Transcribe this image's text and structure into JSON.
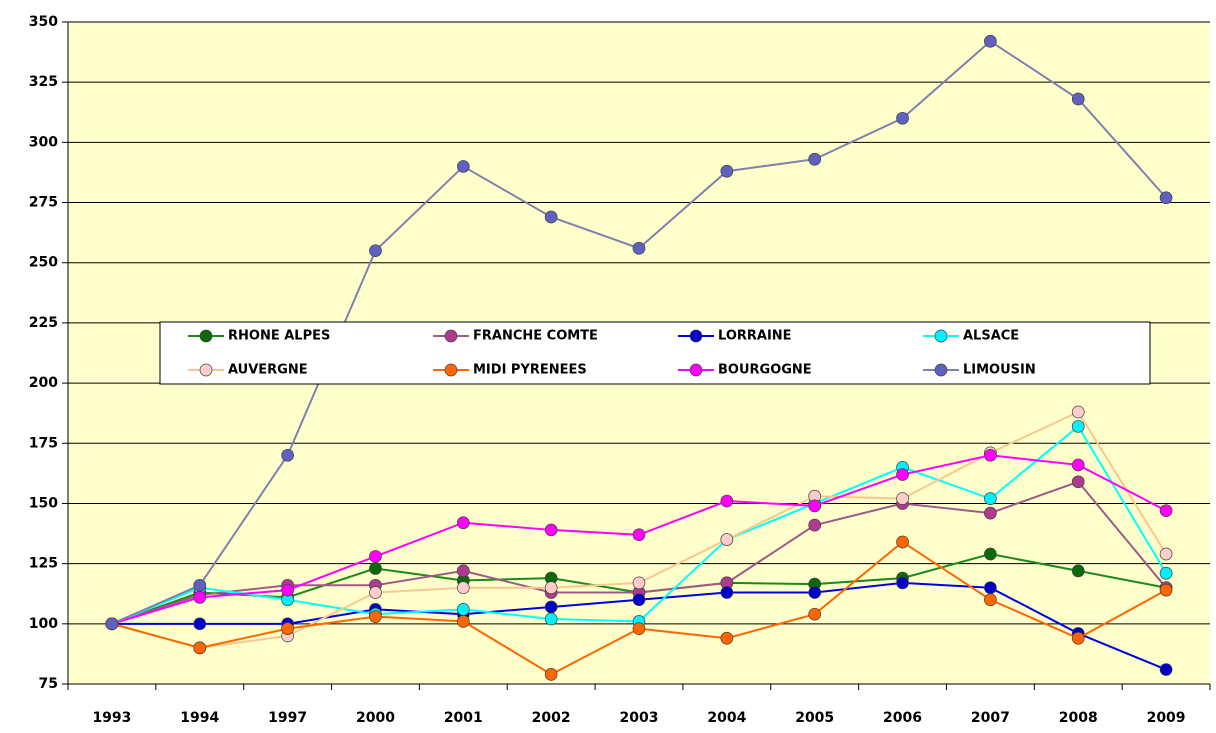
{
  "chart_data": {
    "type": "line",
    "categories": [
      "1993",
      "1994",
      "1997",
      "2000",
      "2001",
      "2002",
      "2003",
      "2004",
      "2005",
      "2006",
      "2007",
      "2008",
      "2009"
    ],
    "ylim": [
      75,
      350
    ],
    "yticks": [
      75,
      100,
      125,
      150,
      175,
      200,
      225,
      250,
      275,
      300,
      325,
      350
    ],
    "grid": true,
    "legend": "center",
    "series": [
      {
        "name": "RHONE ALPES",
        "color": "#1a8a1a",
        "marker_color": "#0a6a0a",
        "values": [
          100,
          113,
          111,
          123,
          118,
          119,
          113,
          117,
          116.5,
          119,
          129,
          122,
          115
        ]
      },
      {
        "name": "FRANCHE COMTE",
        "color": "#a05a8a",
        "marker_color": "#b03a90",
        "values": [
          100,
          112,
          116,
          116,
          122,
          113,
          113,
          117,
          141,
          150,
          146,
          159,
          115
        ]
      },
      {
        "name": "LORRAINE",
        "color": "#0000e0",
        "marker_color": "#0000c8",
        "values": [
          100,
          100,
          100,
          106,
          104,
          107,
          110,
          113,
          113,
          117,
          115,
          96,
          81
        ]
      },
      {
        "name": "ALSACE",
        "color": "#00ffff",
        "marker_color": "#00f0ff",
        "values": [
          100,
          115,
          110,
          104,
          106,
          102,
          101,
          135,
          150,
          165,
          152,
          182,
          121
        ]
      },
      {
        "name": "AUVERGNE",
        "color": "#f8c890",
        "marker_color": "#ffcccc",
        "values": [
          100,
          90,
          95,
          113,
          115,
          115,
          117,
          135,
          153,
          152,
          171,
          188,
          129
        ]
      },
      {
        "name": "MIDI PYRENEES",
        "color": "#ff6600",
        "marker_color": "#ff6600",
        "values": [
          100,
          90,
          98,
          103,
          101,
          79,
          98,
          94,
          104,
          134,
          110,
          94,
          114
        ]
      },
      {
        "name": "BOURGOGNE",
        "color": "#ff00ff",
        "marker_color": "#ff00ff",
        "values": [
          100,
          111,
          114,
          128,
          142,
          139,
          137,
          151,
          149,
          162,
          170,
          166,
          147
        ]
      },
      {
        "name": "LIMOUSIN",
        "color": "#8080b0",
        "marker_color": "#6060c0",
        "values": [
          100,
          116,
          170,
          255,
          290,
          269,
          256,
          288,
          293,
          310,
          342,
          318,
          277
        ]
      }
    ]
  }
}
